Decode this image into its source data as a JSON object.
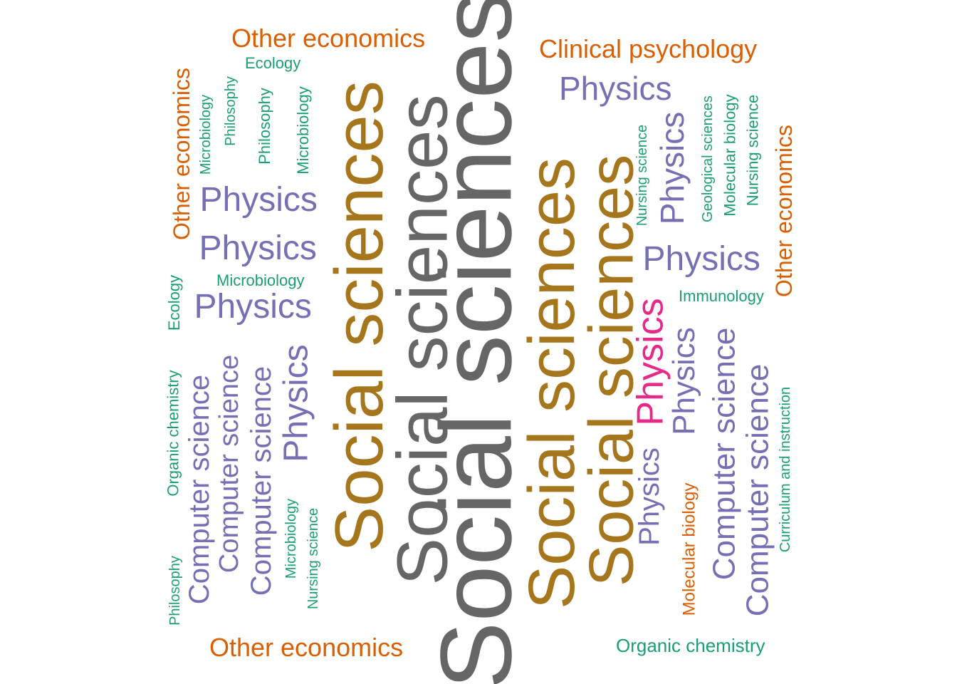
{
  "colors": {
    "social_dark": "#666666",
    "social_gold": "#A6761D",
    "physics_purple": "#7570B3",
    "physics_pink": "#E7298A",
    "econ_orange": "#D95F02",
    "small_green": "#1B9E77"
  },
  "words": [
    {
      "text": "Social sciences",
      "color": "social_dark",
      "vertical": true
    },
    {
      "text": "Social sciences",
      "color": "social_dark",
      "vertical": true
    },
    {
      "text": "Social sciences",
      "color": "social_gold",
      "vertical": true
    },
    {
      "text": "Social sciences",
      "color": "social_gold",
      "vertical": true
    },
    {
      "text": "Social sciences",
      "color": "social_gold",
      "vertical": true
    },
    {
      "text": "Physics",
      "color": "physics_pink",
      "vertical": true
    },
    {
      "text": "Physics",
      "color": "physics_purple",
      "vertical": false
    },
    {
      "text": "Physics",
      "color": "physics_purple",
      "vertical": false
    },
    {
      "text": "Physics",
      "color": "physics_purple",
      "vertical": false
    },
    {
      "text": "Physics",
      "color": "physics_purple",
      "vertical": false
    },
    {
      "text": "Physics",
      "color": "physics_purple",
      "vertical": false
    },
    {
      "text": "Physics",
      "color": "physics_purple",
      "vertical": true
    },
    {
      "text": "Physics",
      "color": "physics_purple",
      "vertical": true
    },
    {
      "text": "Physics",
      "color": "physics_purple",
      "vertical": true
    },
    {
      "text": "Physics",
      "color": "physics_purple",
      "vertical": true
    },
    {
      "text": "Computer science",
      "color": "physics_purple",
      "vertical": true
    },
    {
      "text": "Computer science",
      "color": "physics_purple",
      "vertical": true
    },
    {
      "text": "Computer science",
      "color": "physics_purple",
      "vertical": true
    },
    {
      "text": "Computer science",
      "color": "physics_purple",
      "vertical": true
    },
    {
      "text": "Computer science",
      "color": "physics_purple",
      "vertical": true
    },
    {
      "text": "Other economics",
      "color": "econ_orange",
      "vertical": false
    },
    {
      "text": "Other economics",
      "color": "econ_orange",
      "vertical": false
    },
    {
      "text": "Other economics",
      "color": "econ_orange",
      "vertical": true
    },
    {
      "text": "Other economics",
      "color": "econ_orange",
      "vertical": true
    },
    {
      "text": "Clinical psychology",
      "color": "econ_orange",
      "vertical": false
    },
    {
      "text": "Molecular biology",
      "color": "econ_orange",
      "vertical": true
    },
    {
      "text": "Ecology",
      "color": "small_green",
      "vertical": false
    },
    {
      "text": "Ecology",
      "color": "small_green",
      "vertical": true
    },
    {
      "text": "Microbiology",
      "color": "small_green",
      "vertical": true
    },
    {
      "text": "Microbiology",
      "color": "small_green",
      "vertical": true
    },
    {
      "text": "Microbiology",
      "color": "small_green",
      "vertical": false
    },
    {
      "text": "Microbiology",
      "color": "small_green",
      "vertical": true
    },
    {
      "text": "Philosophy",
      "color": "small_green",
      "vertical": true
    },
    {
      "text": "Philosophy",
      "color": "small_green",
      "vertical": true
    },
    {
      "text": "Philosophy",
      "color": "small_green",
      "vertical": true
    },
    {
      "text": "Nursing science",
      "color": "small_green",
      "vertical": true
    },
    {
      "text": "Nursing science",
      "color": "small_green",
      "vertical": true
    },
    {
      "text": "Nursing science",
      "color": "small_green",
      "vertical": true
    },
    {
      "text": "Geological sciences",
      "color": "small_green",
      "vertical": true
    },
    {
      "text": "Molecular biology",
      "color": "small_green",
      "vertical": true
    },
    {
      "text": "Immunology",
      "color": "small_green",
      "vertical": false
    },
    {
      "text": "Organic chemistry",
      "color": "small_green",
      "vertical": true
    },
    {
      "text": "Organic chemistry",
      "color": "small_green",
      "vertical": false
    },
    {
      "text": "Curriculum and instruction",
      "color": "small_green",
      "vertical": true
    }
  ]
}
